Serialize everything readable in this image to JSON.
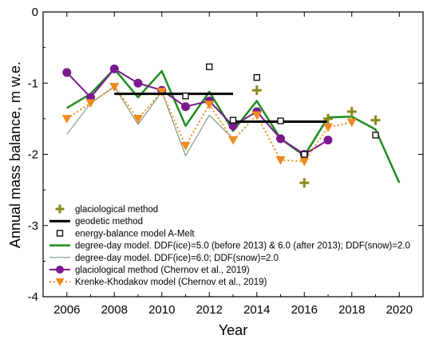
{
  "chart_data": {
    "type": "line",
    "xlabel": "Year",
    "ylabel": "Annual mass balance, m w.e.",
    "xlim": [
      2005,
      2021
    ],
    "ylim": [
      -4,
      0
    ],
    "x_ticks": [
      2006,
      2008,
      2010,
      2012,
      2014,
      2016,
      2018,
      2020
    ],
    "y_ticks": [
      0,
      -1,
      -2,
      -3,
      -4
    ],
    "grid": false,
    "legend_position": "bottom-left inside plot",
    "series": [
      {
        "name": "glaciological method",
        "kind": "markers",
        "marker": "plus",
        "color": "#8a8a1a",
        "points": [
          [
            2014,
            -1.1
          ],
          [
            2016,
            -2.4
          ],
          [
            2017,
            -1.5
          ],
          [
            2018,
            -1.4
          ],
          [
            2019,
            -1.52
          ]
        ]
      },
      {
        "name": "geodetic method",
        "kind": "segments",
        "color": "#000000",
        "segments": [
          [
            [
              2008,
              -1.15
            ],
            [
              2013,
              -1.15
            ]
          ],
          [
            [
              2013,
              -1.54
            ],
            [
              2017,
              -1.54
            ]
          ]
        ]
      },
      {
        "name": "energy-balance model A-Melt",
        "kind": "markers",
        "marker": "square",
        "color": "#000000",
        "points": [
          [
            2011,
            -1.18
          ],
          [
            2012,
            -0.77
          ],
          [
            2013,
            -1.52
          ],
          [
            2014,
            -0.92
          ],
          [
            2015,
            -1.53
          ],
          [
            2016,
            -2.0
          ],
          [
            2019,
            -1.73
          ]
        ]
      },
      {
        "name": "degree-day model. DDF(ice)=5.0 (before 2013) & 6.0 (after 2013); DDF(snow)=2.0",
        "kind": "line",
        "color": "#1e8c1e",
        "width": 2.5,
        "points": [
          [
            2006,
            -1.35
          ],
          [
            2007,
            -1.15
          ],
          [
            2008,
            -0.8
          ],
          [
            2009,
            -1.2
          ],
          [
            2010,
            -0.83
          ],
          [
            2011,
            -1.6
          ],
          [
            2012,
            -1.12
          ],
          [
            2013,
            -1.67
          ],
          [
            2014,
            -1.25
          ],
          [
            2015,
            -1.78
          ],
          [
            2016,
            -2.02
          ],
          [
            2017,
            -1.48
          ],
          [
            2018,
            -1.47
          ],
          [
            2019,
            -1.65
          ],
          [
            2020,
            -2.4
          ]
        ]
      },
      {
        "name": "degree-day model. DDF(ice)=6.0; DDF(snow)=2.0",
        "kind": "line",
        "color": "#6a8a6a",
        "width": 1,
        "points": [
          [
            2006,
            -1.72
          ],
          [
            2007,
            -1.28
          ],
          [
            2008,
            -1.05
          ],
          [
            2009,
            -1.58
          ],
          [
            2010,
            -1.12
          ],
          [
            2011,
            -2.02
          ],
          [
            2012,
            -1.45
          ],
          [
            2013,
            -1.78
          ]
        ]
      },
      {
        "name": "glaciological method (Chernov et al., 2019)",
        "kind": "line-markers",
        "marker": "circle",
        "color": "#7a1a8c",
        "width": 2,
        "points": [
          [
            2006,
            -0.85
          ],
          [
            2007,
            -1.2
          ],
          [
            2008,
            -0.8
          ],
          [
            2009,
            -1.0
          ],
          [
            2010,
            -1.1
          ],
          [
            2011,
            -1.33
          ],
          [
            2012,
            -1.25
          ],
          [
            2013,
            -1.6
          ],
          [
            2014,
            -1.4
          ],
          [
            2015,
            -1.78
          ],
          [
            2016,
            -2.0
          ],
          [
            2017,
            -1.8
          ]
        ]
      },
      {
        "name": "Krenke-Khodakov model (Chernov et al., 2019)",
        "kind": "line-markers",
        "marker": "triangle-down",
        "dashed": true,
        "color": "#f08a1e",
        "width": 2,
        "points": [
          [
            2006,
            -1.5
          ],
          [
            2007,
            -1.28
          ],
          [
            2008,
            -1.05
          ],
          [
            2009,
            -1.5
          ],
          [
            2010,
            -1.12
          ],
          [
            2011,
            -1.88
          ],
          [
            2012,
            -1.3
          ],
          [
            2013,
            -1.8
          ],
          [
            2014,
            -1.45
          ],
          [
            2015,
            -2.08
          ],
          [
            2016,
            -2.1
          ],
          [
            2017,
            -1.62
          ],
          [
            2018,
            -1.55
          ]
        ]
      }
    ]
  }
}
